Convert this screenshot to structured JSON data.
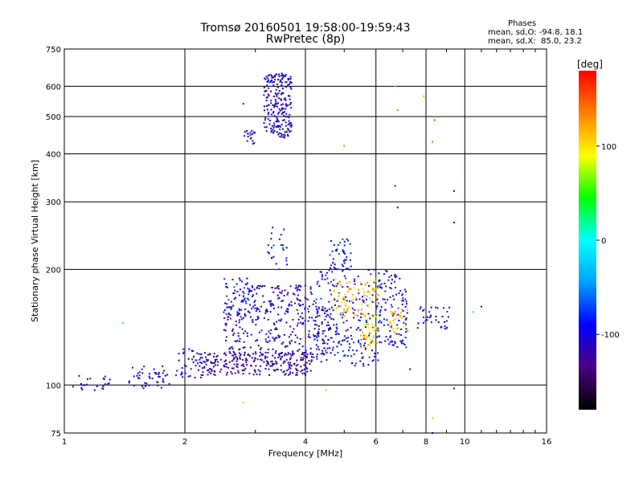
{
  "header": {
    "title_line1": "Tromsø 20160501 19:58:00-19:59:43",
    "title_line2": "RwPretec (8p)"
  },
  "phase_box": {
    "heading": "Phases",
    "line_o": "mean, sd,O: -94.8, 18.1",
    "line_x": "mean, sd,X:  85.0, 23.2"
  },
  "chart_data": {
    "type": "scatter",
    "title": "Tromsø 20160501 19:58:00-19:59:43",
    "subtitle": "RwPretec (8p)",
    "xlabel": "Frequency [MHz]",
    "ylabel": "Stationary phase Virtual Height [km]",
    "x_scale": "log",
    "y_scale": "log",
    "xlim": [
      1,
      16
    ],
    "ylim": [
      75,
      750
    ],
    "x_ticks": [
      1,
      2,
      4,
      6,
      8,
      10,
      16
    ],
    "y_ticks": [
      75,
      100,
      200,
      300,
      400,
      500,
      600,
      750
    ],
    "grid": true,
    "colorbar": {
      "label": "[deg]",
      "range": [
        -180,
        180
      ],
      "ticks": [
        100,
        0,
        -100
      ],
      "colormap": [
        "#000000",
        "#4a0080",
        "#0000ff",
        "#00a0ff",
        "#00ffff",
        "#00ff00",
        "#ffff00",
        "#ff8000",
        "#ff0000"
      ]
    },
    "point_groups": [
      {
        "x": [
          1.05,
          1.3
        ],
        "y": [
          96,
          107
        ],
        "phase": -110,
        "count": 22
      },
      {
        "x": [
          1.45,
          1.85
        ],
        "y": [
          98,
          112
        ],
        "phase": -110,
        "count": 45
      },
      {
        "x": [
          1.9,
          2.2
        ],
        "y": [
          104,
          125
        ],
        "phase": -100,
        "count": 40
      },
      {
        "x": [
          2.2,
          4.2
        ],
        "y": [
          106,
          122
        ],
        "phase": -120,
        "count": 260
      },
      {
        "x": [
          2.5,
          4.8
        ],
        "y": [
          120,
          160
        ],
        "phase": -110,
        "count": 260
      },
      {
        "x": [
          2.5,
          2.95
        ],
        "y": [
          150,
          190
        ],
        "phase": -90,
        "count": 70
      },
      {
        "x": [
          2.9,
          4.2
        ],
        "y": [
          160,
          182
        ],
        "phase": -115,
        "count": 90
      },
      {
        "x": [
          3.2,
          3.6
        ],
        "y": [
          200,
          260
        ],
        "phase": -95,
        "count": 25
      },
      {
        "x": [
          2.8,
          3.0
        ],
        "y": [
          420,
          460
        ],
        "phase": -100,
        "count": 20
      },
      {
        "x": [
          3.15,
          3.7
        ],
        "y": [
          440,
          650
        ],
        "phase": -105,
        "count": 220
      },
      {
        "x": [
          4.2,
          6.2
        ],
        "y": [
          112,
          200
        ],
        "phase": -95,
        "count": 230
      },
      {
        "x": [
          4.6,
          5.2
        ],
        "y": [
          200,
          240
        ],
        "phase": -90,
        "count": 45
      },
      {
        "x": [
          4.7,
          6.1
        ],
        "y": [
          150,
          190
        ],
        "phase": 110,
        "count": 90
      },
      {
        "x": [
          5.5,
          6.1
        ],
        "y": [
          125,
          145
        ],
        "phase": 105,
        "count": 40
      },
      {
        "x": [
          6.1,
          7.2
        ],
        "y": [
          125,
          200
        ],
        "phase": -95,
        "count": 110
      },
      {
        "x": [
          6.5,
          7.2
        ],
        "y": [
          135,
          160
        ],
        "phase": 110,
        "count": 30
      },
      {
        "x": [
          7.6,
          9.2
        ],
        "y": [
          140,
          160
        ],
        "phase": -100,
        "count": 35
      }
    ],
    "scattered_points": [
      {
        "x": 2.05,
        "y": 124,
        "phase": -100
      },
      {
        "x": 1.4,
        "y": 145,
        "phase": 30
      },
      {
        "x": 2.8,
        "y": 540,
        "phase": -110
      },
      {
        "x": 2.8,
        "y": 90,
        "phase": 110
      },
      {
        "x": 6.7,
        "y": 600,
        "phase": 120
      },
      {
        "x": 6.8,
        "y": 520,
        "phase": 140
      },
      {
        "x": 6.7,
        "y": 330,
        "phase": -100
      },
      {
        "x": 6.8,
        "y": 290,
        "phase": -100
      },
      {
        "x": 5.0,
        "y": 420,
        "phase": 140
      },
      {
        "x": 8.4,
        "y": 490,
        "phase": 160
      },
      {
        "x": 8.3,
        "y": 430,
        "phase": 140
      },
      {
        "x": 9.4,
        "y": 320,
        "phase": -140
      },
      {
        "x": 9.4,
        "y": 265,
        "phase": -100
      },
      {
        "x": 7.9,
        "y": 565,
        "phase": 60
      },
      {
        "x": 10.5,
        "y": 155,
        "phase": 40
      },
      {
        "x": 11.0,
        "y": 160,
        "phase": -100
      },
      {
        "x": 9.4,
        "y": 98,
        "phase": -120
      },
      {
        "x": 8.3,
        "y": 82,
        "phase": 70
      },
      {
        "x": 8.3,
        "y": 75,
        "phase": -100
      },
      {
        "x": 4.5,
        "y": 97,
        "phase": 70
      },
      {
        "x": 3.6,
        "y": 460,
        "phase": 60
      },
      {
        "x": 7.3,
        "y": 110,
        "phase": -100
      }
    ]
  }
}
